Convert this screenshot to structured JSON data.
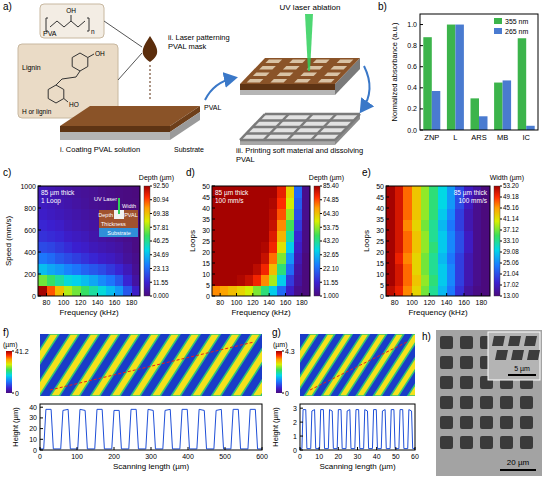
{
  "panel_labels": [
    "a)",
    "b)",
    "c)",
    "d)",
    "e)",
    "f)",
    "g)",
    "h)"
  ],
  "schematic": {
    "pva": "PVA",
    "lignin": "Lignin",
    "chem_labels": [
      "OH",
      "n",
      "OH",
      "HO",
      "H or lignin"
    ],
    "pval": "PVAL",
    "substrate": "Substrate",
    "laser": "UV laser ablation",
    "steps": [
      "i. Coating PVAL solution",
      "ii. Laser patterning PVAL mask",
      "iii. Printing soft material and dissolving PVAL"
    ]
  },
  "chart_data": [
    {
      "type": "bar",
      "categories": [
        "ZNP",
        "L",
        "ARS",
        "MB",
        "IC"
      ],
      "series": [
        {
          "name": "355 nm",
          "color": "#3cb44b",
          "values": [
            0.88,
            1.0,
            0.3,
            0.45,
            0.87
          ]
        },
        {
          "name": "265 nm",
          "color": "#4a7bd0",
          "values": [
            0.37,
            1.0,
            0.13,
            0.47,
            0.04
          ]
        }
      ],
      "y_label": "Normalized absorbance (a.u.)",
      "ylim": [
        0,
        1.1
      ],
      "yticks": [
        {
          "value": 0,
          "label": "0.0"
        },
        0.2,
        0.4,
        0.6,
        0.8,
        {
          "value": 1,
          "label": "1.0"
        }
      ],
      "legend": "upper right"
    },
    {
      "type": "heatmap",
      "x_label": "Frequency (kHz)",
      "y_label": "Speed (mm/s)",
      "x": [
        75,
        85,
        95,
        105,
        115,
        125,
        135,
        145,
        155,
        165,
        175,
        185
      ],
      "y": [
        50,
        150,
        250,
        350,
        450,
        550,
        650,
        750,
        850,
        950
      ],
      "values": [
        [
          92,
          80,
          70,
          60,
          55,
          50,
          45,
          40,
          35,
          30,
          20,
          10
        ],
        [
          55,
          50,
          45,
          40,
          38,
          35,
          32,
          28,
          25,
          20,
          12,
          5
        ],
        [
          35,
          32,
          30,
          27,
          25,
          22,
          20,
          18,
          15,
          12,
          8,
          3
        ],
        [
          25,
          23,
          20,
          18,
          16,
          14,
          12,
          10,
          9,
          7,
          4,
          2
        ],
        [
          18,
          17,
          15,
          13,
          11,
          10,
          8,
          7,
          6,
          5,
          3,
          1
        ],
        [
          14,
          13,
          12,
          10,
          9,
          8,
          6,
          5,
          4,
          3,
          2,
          1
        ],
        [
          12,
          11,
          10,
          8,
          7,
          6,
          5,
          4,
          3,
          2,
          1,
          0.5
        ],
        [
          10,
          9,
          8,
          7,
          6,
          5,
          4,
          3,
          2,
          1.5,
          1,
          0.5
        ],
        [
          9,
          8,
          7,
          6,
          5,
          4,
          3,
          2.5,
          2,
          1,
          0.5,
          0.3
        ],
        [
          8,
          7,
          6,
          5,
          4,
          3.5,
          3,
          2,
          1.5,
          1,
          0.5,
          0.2
        ]
      ],
      "xlim": [
        70,
        190
      ],
      "ylim": [
        0,
        1000
      ],
      "xticks": [
        80,
        100,
        120,
        140,
        160,
        180
      ],
      "yticks": [
        0,
        200,
        400,
        600,
        800,
        1000
      ],
      "colorbar": {
        "label": "Depth (µm)",
        "range": [
          0,
          92.5
        ],
        "ticks": [
          {
            "value": 0,
            "label": "0.000"
          },
          11.55,
          23.13,
          34.69,
          46.25,
          57.81,
          69.38,
          80.94,
          {
            "value": 92.5,
            "label": "92.50"
          }
        ]
      },
      "annotations": [
        "85 µm thick",
        "1 Loop"
      ],
      "inset_labels": [
        "UV Laser",
        "Width",
        "Depth",
        "Thickness",
        "PVAL",
        "Substrate"
      ]
    },
    {
      "type": "heatmap",
      "x_label": "Frequency (kHz)",
      "y_label": "Loops",
      "x": [
        75,
        85,
        95,
        105,
        115,
        125,
        135,
        145,
        155,
        165,
        175,
        185
      ],
      "y": [
        2.5,
        7.5,
        12.5,
        17.5,
        22.5,
        27.5,
        32.5,
        37.5,
        42.5,
        47.5
      ],
      "values": [
        [
          70,
          68,
          65,
          62,
          58,
          52,
          45,
          35,
          22,
          10,
          3,
          1
        ],
        [
          85,
          85,
          85,
          84,
          82,
          78,
          70,
          55,
          35,
          15,
          5,
          1
        ],
        [
          85,
          85,
          85,
          85,
          85,
          83,
          78,
          65,
          45,
          22,
          6,
          1
        ],
        [
          85,
          85,
          85,
          85,
          85,
          85,
          82,
          72,
          52,
          28,
          8,
          1
        ],
        [
          85,
          85,
          85,
          85,
          85,
          85,
          84,
          78,
          60,
          35,
          10,
          2
        ],
        [
          85,
          85,
          85,
          85,
          85,
          85,
          85,
          80,
          66,
          42,
          12,
          2
        ],
        [
          85,
          85,
          85,
          85,
          85,
          85,
          85,
          82,
          70,
          48,
          15,
          2
        ],
        [
          85,
          85,
          85,
          85,
          85,
          85,
          85,
          83,
          74,
          54,
          18,
          3
        ],
        [
          85,
          85,
          85,
          85,
          85,
          85,
          85,
          84,
          77,
          58,
          20,
          3
        ],
        [
          85,
          85,
          85,
          85,
          85,
          85,
          85,
          85,
          79,
          62,
          22,
          3
        ]
      ],
      "xlim": [
        70,
        190
      ],
      "ylim": [
        0,
        50
      ],
      "xticks": [
        80,
        100,
        120,
        140,
        160,
        180
      ],
      "yticks": [
        0,
        5,
        10,
        15,
        20,
        25,
        30,
        35,
        40,
        45,
        50
      ],
      "colorbar": {
        "label": "Depth (µm)",
        "range": [
          1,
          85.4
        ],
        "ticks": [
          {
            "value": 1,
            "label": "1.000"
          },
          11.55,
          {
            "value": 22.1,
            "label": "22.10"
          },
          32.65,
          {
            "value": 43.2,
            "label": "43.20"
          },
          53.75,
          {
            "value": 64.3,
            "label": "64.30"
          },
          74.85,
          {
            "value": 85.4,
            "label": "85.40"
          }
        ]
      },
      "annotations": [
        "85 µm thick",
        "100 mm/s"
      ]
    },
    {
      "type": "heatmap",
      "x_label": "Frequency (kHz)",
      "y_label": "Loops",
      "x": [
        75,
        85,
        95,
        105,
        115,
        125,
        135,
        145,
        155,
        165,
        175,
        185
      ],
      "y": [
        2.5,
        7.5,
        12.5,
        17.5,
        22.5,
        27.5,
        32.5,
        37.5,
        42.5,
        47.5
      ],
      "values": [
        [
          52,
          50,
          46,
          42,
          37,
          33,
          28,
          24,
          19,
          15,
          13.5,
          13
        ],
        [
          53,
          51,
          47,
          43,
          38,
          34,
          29,
          25,
          20,
          16,
          14,
          13
        ],
        [
          53,
          51,
          47,
          42,
          37,
          33,
          29,
          25,
          20,
          16,
          14,
          13
        ],
        [
          53,
          50,
          46,
          42,
          37,
          33,
          28,
          24,
          20,
          16,
          14,
          13
        ],
        [
          53,
          51,
          47,
          43,
          38,
          34,
          29,
          25,
          21,
          17,
          14,
          13
        ],
        [
          53,
          51,
          47,
          43,
          38,
          33,
          29,
          25,
          21,
          17,
          14,
          13
        ],
        [
          53,
          51,
          46,
          42,
          37,
          33,
          28,
          24,
          20,
          16,
          14,
          13
        ],
        [
          53,
          51,
          47,
          43,
          38,
          34,
          29,
          25,
          20,
          16,
          14,
          13
        ],
        [
          53,
          51,
          47,
          43,
          38,
          34,
          30,
          26,
          21,
          17,
          14,
          13
        ],
        [
          53,
          51,
          47,
          43,
          38,
          34,
          30,
          26,
          21,
          17,
          15,
          13
        ]
      ],
      "xlim": [
        70,
        190
      ],
      "ylim": [
        0,
        50
      ],
      "xticks": [
        80,
        100,
        120,
        140,
        160,
        180
      ],
      "yticks": [
        0,
        5,
        10,
        15,
        20,
        25,
        30,
        35,
        40,
        45,
        50
      ],
      "colorbar": {
        "label": "Width (µm)",
        "range": [
          13,
          53.2
        ],
        "ticks": [
          {
            "value": 13,
            "label": "13.00"
          },
          17.02,
          21.04,
          25.06,
          29.08,
          {
            "value": 33.1,
            "label": "33.10"
          },
          37.12,
          41.14,
          45.16,
          49.18,
          {
            "value": 53.2,
            "label": "53.20"
          }
        ]
      },
      "annotations": [
        "85 µm thick",
        "100 mm/s"
      ]
    },
    {
      "type": "line",
      "color": "#1f4fd8",
      "x_label": "Scanning length (µm)",
      "y_label": "Height (µm)",
      "x": [
        0,
        10,
        16,
        30,
        36,
        56,
        62,
        76,
        82,
        102,
        108,
        122,
        128,
        148,
        154,
        168,
        174,
        194,
        200,
        214,
        220,
        240,
        246,
        260,
        266,
        286,
        292,
        306,
        312,
        332,
        338,
        352,
        358,
        378,
        384,
        398,
        404,
        424,
        430,
        444,
        450,
        470,
        476,
        490,
        496,
        516,
        522,
        536,
        542,
        562,
        568,
        582,
        588,
        600
      ],
      "values": [
        1,
        1,
        38,
        38,
        1,
        1,
        37,
        38,
        1,
        1,
        38,
        37,
        1,
        1,
        38,
        38,
        1,
        1,
        37,
        37,
        1,
        1,
        38,
        38,
        1,
        1,
        38,
        37,
        1,
        1,
        37,
        38,
        1,
        1,
        38,
        38,
        1,
        1,
        38,
        37,
        1,
        1,
        37,
        38,
        1,
        1,
        38,
        38,
        1,
        1,
        38,
        38,
        1,
        1
      ],
      "xlim": [
        0,
        600
      ],
      "ylim": [
        0,
        43
      ],
      "xticks": [
        0,
        100,
        200,
        300,
        400,
        500,
        600
      ],
      "yticks": [
        0,
        10,
        20,
        30,
        40
      ],
      "colorbar": {
        "label": "(µm)",
        "range": [
          0,
          41.2
        ],
        "ticks": [
          0,
          41.2
        ]
      }
    },
    {
      "type": "line",
      "color": "#1f4fd8",
      "x_label": "Scanning length (µm)",
      "y_label": "Height (µm)",
      "x": [
        0,
        1.0,
        1.6,
        3.0,
        3.6,
        5.6,
        6.2,
        7.6,
        8.2,
        10.2,
        10.8,
        12.2,
        12.8,
        14.8,
        15.4,
        16.8,
        17.4,
        19.4,
        20.0,
        21.4,
        22.0,
        24.0,
        24.6,
        26.0,
        26.6,
        28.6,
        29.2,
        30.6,
        31.2,
        33.2,
        33.8,
        35.2,
        35.8,
        37.8,
        38.4,
        39.8,
        40.4,
        42.4,
        43.0,
        44.4,
        45.0,
        47.0,
        47.6,
        49.0,
        49.6,
        51.6,
        52.2,
        53.6,
        54.2,
        56.2,
        56.8,
        58.2,
        58.8,
        60
      ],
      "values": [
        0.1,
        0.1,
        2.9,
        2.9,
        0.1,
        0.1,
        2.8,
        2.9,
        0.1,
        0.1,
        2.9,
        2.9,
        0.1,
        0.1,
        2.9,
        2.8,
        0.1,
        0.1,
        2.9,
        2.9,
        0.1,
        0.1,
        2.8,
        2.9,
        0.1,
        0.1,
        2.9,
        2.9,
        0.1,
        0.1,
        2.9,
        2.8,
        0.1,
        0.1,
        2.9,
        2.9,
        0.1,
        0.1,
        2.8,
        2.9,
        0.1,
        0.1,
        2.9,
        2.9,
        0.1,
        0.1,
        2.9,
        2.9,
        0.1,
        0.1,
        2.9,
        2.8,
        0.1,
        0.1
      ],
      "xlim": [
        0,
        60
      ],
      "ylim": [
        0,
        3.3
      ],
      "xticks": [
        0,
        10,
        20,
        30,
        40,
        50,
        60
      ],
      "yticks": [
        0,
        1,
        2,
        3
      ],
      "colorbar": {
        "label": "(µm)",
        "range": [
          0,
          4.3
        ],
        "ticks": [
          0,
          4.3
        ]
      }
    }
  ],
  "micrograph": {
    "scale_bar": "20 µm",
    "inset_scale_bar": "5 µm"
  }
}
